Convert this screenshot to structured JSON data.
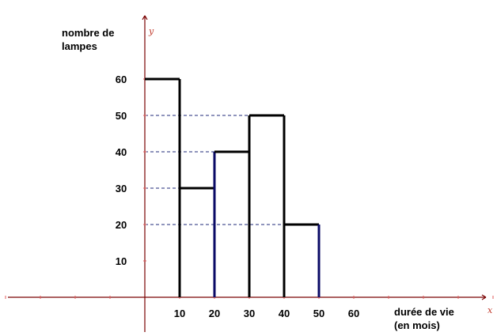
{
  "colors": {
    "axis": "#7a0000",
    "tick": "#e05a5a",
    "bar_outline": "#000000",
    "bar_outline_alt": "#0a0a66",
    "guide": "#1f2a7a",
    "axis_letter": "#c0392b"
  },
  "chart_data": {
    "type": "bar",
    "ylabel_lines": [
      "nombre de",
      "lampes"
    ],
    "xlabel_lines": [
      "durée de vie",
      "(en mois)"
    ],
    "x_axis_letter": "x",
    "y_axis_letter": "y",
    "bins": [
      {
        "from": 0,
        "to": 10,
        "value": 60
      },
      {
        "from": 10,
        "to": 20,
        "value": 30
      },
      {
        "from": 20,
        "to": 30,
        "value": 40
      },
      {
        "from": 30,
        "to": 40,
        "value": 50
      },
      {
        "from": 40,
        "to": 50,
        "value": 20
      }
    ],
    "x_tick_labels": [
      "10",
      "20",
      "30",
      "40",
      "50",
      "60"
    ],
    "y_tick_labels": [
      "10",
      "20",
      "30",
      "40",
      "50",
      "60"
    ],
    "dashed_guides_at": [
      20,
      30,
      40,
      50
    ],
    "xlim": [
      -40,
      100
    ],
    "ylim": [
      -5,
      77
    ],
    "grid": false
  }
}
